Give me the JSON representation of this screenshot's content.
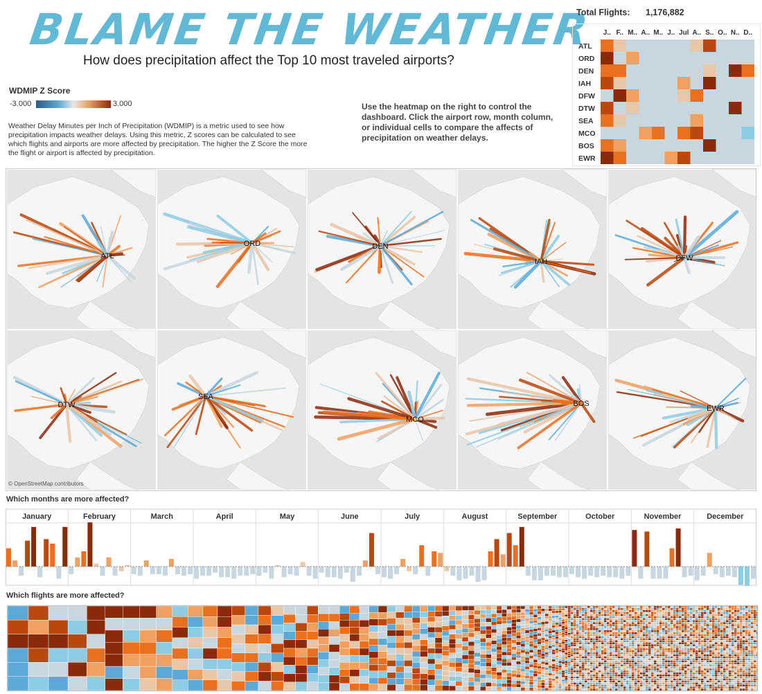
{
  "title": "BLAME THE WEATHER",
  "subtitle": "How does precipitation affect the Top 10 most traveled airports?",
  "legend": {
    "title": "WDMIP Z Score",
    "min": "-3.000",
    "max": "3.000"
  },
  "description": "Weather Delay Minutes per Inch of Precipitation (WDMIP) is a metric used to see how precipitation impacts weather delays.  Using this metric, Z scores can be calculated to see which flights and airports are more affected by precipitation.  The higher the Z Score the more the flight or airport is affected by precipitation.",
  "instructions": "Use the heatmap on the right to control the dashboard.  Click the airport row, month column, or individual cells to compare the affects of precipitation on weather delays.",
  "total_flights": {
    "label": "Total Flights:",
    "value": "1,176,882"
  },
  "osm_credit": "© OpenStreetMap contributors",
  "months_question": "Which months are more affected?",
  "flights_question": "Which flights are more affected?",
  "colors": {
    "title": "#62b9d6",
    "scale": [
      "#2a5a8c",
      "#5aa9d8",
      "#8ecbe4",
      "#c7d6df",
      "#e8c6a8",
      "#f0a060",
      "#e8701e",
      "#b8480e",
      "#8b2a0a"
    ]
  },
  "chart_data": [
    {
      "type": "heatmap",
      "name": "airport-month WDMIP Z score",
      "columns": [
        "J..",
        "F..",
        "M..",
        "A..",
        "M..",
        "J..",
        "Jul",
        "A..",
        "S..",
        "O..",
        "N..",
        "D.."
      ],
      "rows": [
        "ATL",
        "ORD",
        "DEN",
        "IAH",
        "DFW",
        "DTW",
        "SEA",
        "MCO",
        "BOS",
        "EWR"
      ],
      "values": [
        [
          1.2,
          0.2,
          -0.5,
          -0.8,
          -0.6,
          -0.4,
          -0.7,
          -0.3,
          2.2,
          -0.5,
          -0.8,
          -0.9
        ],
        [
          2.6,
          -0.6,
          0.4,
          -0.8,
          -0.4,
          -0.7,
          -0.8,
          -1.0,
          -0.9,
          -0.7,
          -0.8,
          -0.6
        ],
        [
          1.0,
          1.6,
          -0.6,
          -1.0,
          -0.6,
          -0.8,
          -0.5,
          -0.9,
          0.3,
          -0.7,
          2.7,
          1.5
        ],
        [
          1.8,
          0.1,
          -0.6,
          -0.7,
          -0.7,
          -0.4,
          0.8,
          -0.8,
          2.6,
          -0.6,
          -0.8,
          -0.9
        ],
        [
          -0.6,
          2.9,
          0.5,
          -0.8,
          -0.6,
          -0.7,
          0.3,
          1.0,
          -0.9,
          -0.6,
          -0.8,
          -0.7
        ],
        [
          1.7,
          -0.6,
          0.3,
          -0.6,
          -0.8,
          -0.7,
          -0.5,
          -0.6,
          -0.8,
          -0.8,
          2.6,
          -0.6
        ],
        [
          1.2,
          0.2,
          -0.6,
          -0.8,
          -0.8,
          -0.7,
          -0.5,
          0.9,
          -0.6,
          -0.8,
          -0.7,
          -0.5
        ],
        [
          -0.7,
          -0.5,
          -0.5,
          0.6,
          1.5,
          -0.6,
          1.4,
          1.8,
          -0.6,
          -0.7,
          -0.8,
          -1.2
        ],
        [
          1.5,
          0.6,
          -0.5,
          -0.6,
          -0.4,
          -0.8,
          -0.6,
          -0.6,
          2.8,
          -0.7,
          -0.9,
          -0.5
        ],
        [
          2.6,
          1.0,
          -0.5,
          -0.6,
          -0.5,
          0.4,
          1.7,
          -0.7,
          -0.5,
          -0.8,
          -0.6,
          -0.8
        ]
      ],
      "range": [
        -3,
        3
      ]
    },
    {
      "type": "map",
      "name": "flight routes by airport",
      "airports": [
        "ATL",
        "ORD",
        "DEN",
        "IAH",
        "DFW",
        "DTW",
        "SEA",
        "MCO",
        "BOS",
        "EWR"
      ]
    },
    {
      "type": "bar",
      "name": "monthly airport z scores",
      "categories": [
        "January",
        "February",
        "March",
        "April",
        "May",
        "June",
        "July",
        "August",
        "September",
        "October",
        "November",
        "December"
      ],
      "series_order": [
        "ATL",
        "ORD",
        "DEN",
        "IAH",
        "DFW",
        "DTW",
        "SEA",
        "MCO",
        "BOS",
        "EWR"
      ],
      "ylim": [
        -1.5,
        3
      ],
      "values": [
        [
          1.2,
          0.4,
          -0.6,
          1.7,
          2.6,
          -0.7,
          1.8,
          1.5,
          -0.8,
          2.6
        ],
        [
          -0.5,
          0.6,
          1.0,
          2.9,
          0.2,
          -0.6,
          0.6,
          -0.6,
          -0.3,
          0.1
        ],
        [
          -0.5,
          -0.6,
          0.4,
          -0.5,
          -0.5,
          -0.6,
          0.5,
          -0.5,
          -0.6,
          -0.5
        ],
        [
          -0.8,
          -0.6,
          -0.6,
          -0.4,
          -0.7,
          -0.7,
          -0.8,
          -0.6,
          -0.6,
          -0.5
        ],
        [
          -0.6,
          -0.4,
          -0.8,
          0.1,
          -0.7,
          -0.5,
          -0.6,
          0.3,
          -0.6,
          -0.8
        ],
        [
          -0.4,
          -0.7,
          -0.7,
          -0.8,
          -0.4,
          -1.0,
          -0.6,
          0.4,
          2.2,
          -0.5
        ],
        [
          -0.7,
          -0.8,
          -0.5,
          0.5,
          -0.3,
          -0.5,
          1.4,
          -0.6,
          1.0,
          0.9
        ],
        [
          -0.3,
          -0.6,
          -0.9,
          -0.8,
          -0.6,
          -1.0,
          -0.9,
          1.0,
          1.8,
          0.8
        ],
        [
          2.2,
          1.4,
          2.6,
          -0.6,
          -0.9,
          -0.9,
          -0.6,
          -0.6,
          -0.7,
          -0.7
        ],
        [
          -0.5,
          -0.7,
          -0.8,
          -0.6,
          -0.7,
          -0.6,
          -0.7,
          -0.7,
          -0.8,
          -0.6
        ],
        [
          2.4,
          -0.8,
          2.3,
          -0.8,
          -0.8,
          -0.8,
          1.2,
          2.5,
          -0.7,
          -0.6
        ],
        [
          -0.9,
          -0.6,
          0.9,
          -0.5,
          -0.7,
          -0.6,
          -0.7,
          -1.2,
          -1.5,
          -0.8
        ]
      ]
    },
    {
      "type": "heatmap",
      "name": "flight route z score treemap",
      "range": [
        -3,
        3
      ]
    }
  ]
}
